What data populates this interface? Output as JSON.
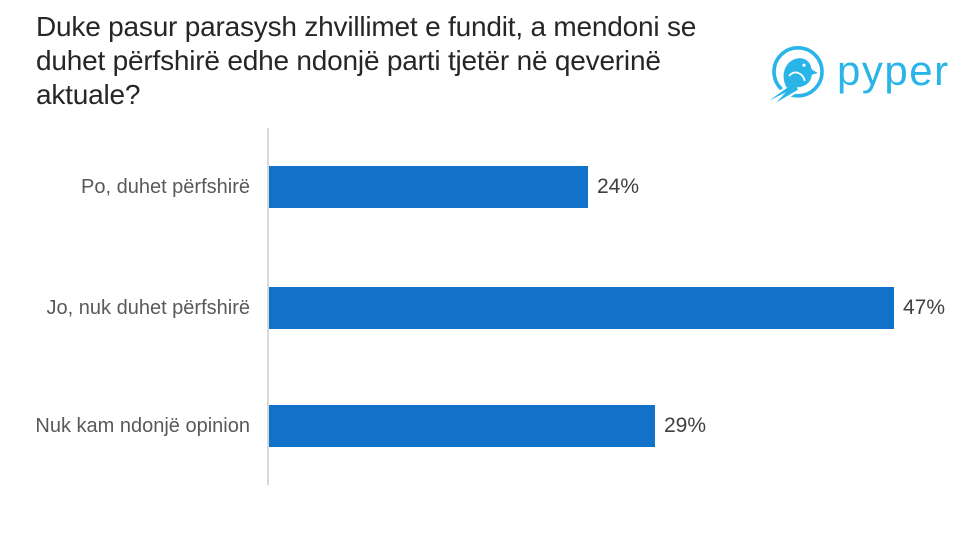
{
  "title": {
    "text": "Duke pasur parasysh zhvillimet e fundit, a mendoni se duhet përfshirë edhe ndonjë parti tjetër në qeverinë aktuale?",
    "lines": [
      "Duke pasur parasysh zhvillimet e fundit, a mendoni se",
      "duhet përfshirë edhe ndonjë parti tjetër në qeverinë",
      "aktuale?"
    ]
  },
  "logo": {
    "text": "pyper",
    "icon": "bird-in-circle-icon",
    "brand_color": "#29b5e8"
  },
  "chart_data": {
    "type": "bar",
    "orientation": "horizontal",
    "title": "Duke pasur parasysh zhvillimet e fundit, a mendoni se duhet përfshirë edhe ndonjë parti tjetër në qeverinë aktuale?",
    "categories": [
      "Po, duhet përfshirë",
      "Jo, nuk duhet përfshirë",
      "Nuk kam ndonjë opinion"
    ],
    "values": [
      24,
      47,
      29
    ],
    "value_labels": [
      "24%",
      "47%",
      "29%"
    ],
    "xlabel": "",
    "ylabel": "",
    "xlim": [
      0,
      50
    ],
    "grid": false,
    "legend": false,
    "bar_color": "#1271c8",
    "axis_line_color": "#d9d9d9",
    "category_label_color": "#595959",
    "value_label_color": "#404040"
  }
}
